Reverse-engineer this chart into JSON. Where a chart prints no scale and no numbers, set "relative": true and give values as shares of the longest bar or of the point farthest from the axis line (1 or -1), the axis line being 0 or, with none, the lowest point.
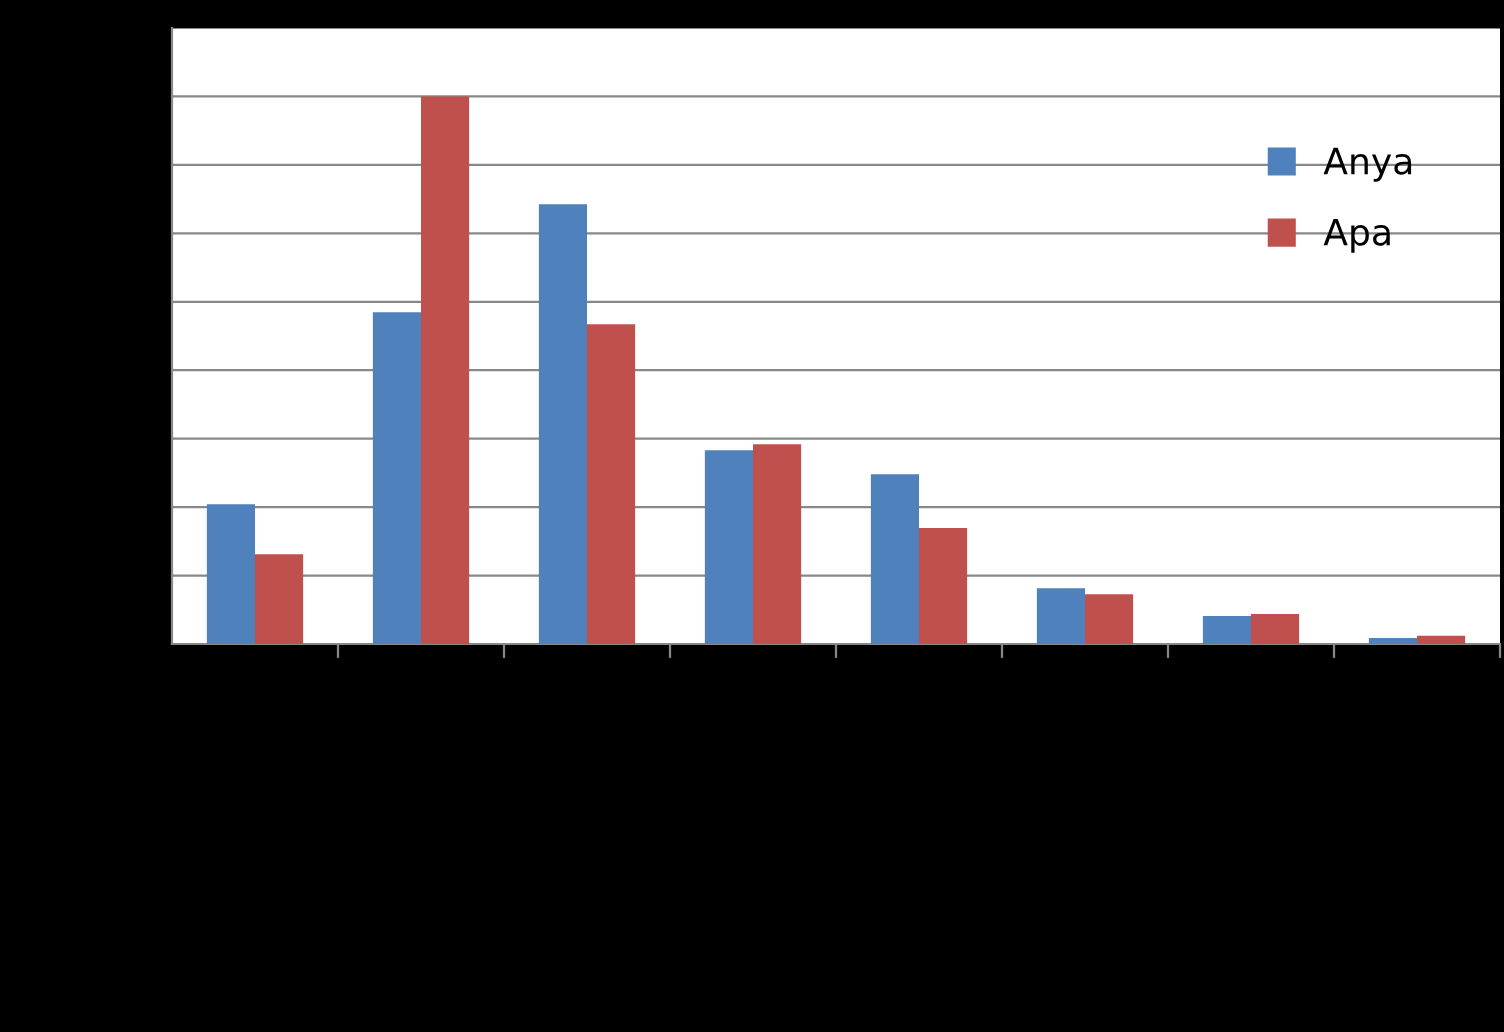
{
  "chart_data": {
    "type": "bar",
    "relative": true,
    "grid": "y",
    "legend": "top right",
    "categories": [
      null,
      null,
      null,
      null,
      null,
      null,
      null,
      null
    ],
    "series": [
      {
        "name": "Anya",
        "color": "#4f81bd",
        "values": [
          0.255,
          0.606,
          0.803,
          0.354,
          0.31,
          0.102,
          0.051,
          0.011
        ]
      },
      {
        "name": "Apa",
        "color": "#c0504d",
        "values": [
          0.164,
          1,
          0.584,
          0.365,
          0.212,
          0.091,
          0.055,
          0.015
        ]
      }
    ]
  }
}
